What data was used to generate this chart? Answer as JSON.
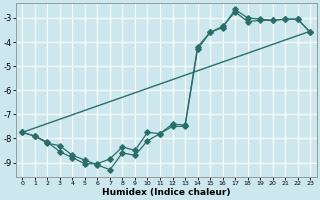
{
  "xlabel": "Humidex (Indice chaleur)",
  "bg_color": "#cce8ee",
  "grid_color": "#ffffff",
  "line_color": "#2a6e6a",
  "xlim": [
    -0.5,
    23.5
  ],
  "ylim": [
    -9.6,
    -2.4
  ],
  "xticks": [
    0,
    1,
    2,
    3,
    4,
    5,
    6,
    7,
    8,
    9,
    10,
    11,
    12,
    13,
    14,
    15,
    16,
    17,
    18,
    19,
    20,
    21,
    22,
    23
  ],
  "yticks": [
    -9,
    -8,
    -7,
    -6,
    -5,
    -4,
    -3
  ],
  "line1_x": [
    0,
    1,
    2,
    3,
    4,
    5,
    6,
    7,
    8,
    9,
    10,
    11,
    12,
    13,
    14,
    15,
    16,
    17,
    18,
    19,
    20,
    21,
    22,
    23
  ],
  "line1_y": [
    -7.75,
    -7.9,
    -8.2,
    -8.3,
    -8.7,
    -8.9,
    -9.1,
    -9.3,
    -8.6,
    -8.7,
    -8.1,
    -7.8,
    -7.5,
    -7.5,
    -4.3,
    -3.6,
    -3.4,
    -2.65,
    -3.0,
    -3.05,
    -3.1,
    -3.05,
    -3.05,
    -3.6
  ],
  "line2_x": [
    0,
    1,
    2,
    3,
    4,
    5,
    6,
    7,
    8,
    9,
    10,
    11,
    12,
    13,
    14,
    15,
    16,
    17,
    18,
    19,
    20,
    21,
    22,
    23
  ],
  "line2_y": [
    -7.75,
    -7.9,
    -8.15,
    -8.55,
    -8.8,
    -9.05,
    -9.05,
    -8.85,
    -8.35,
    -8.5,
    -7.75,
    -7.8,
    -7.4,
    -7.45,
    -4.2,
    -3.6,
    -3.35,
    -2.75,
    -3.15,
    -3.1,
    -3.1,
    -3.05,
    -3.05,
    -3.6
  ],
  "line3_x": [
    0,
    23
  ],
  "line3_y": [
    -7.75,
    -3.55
  ]
}
